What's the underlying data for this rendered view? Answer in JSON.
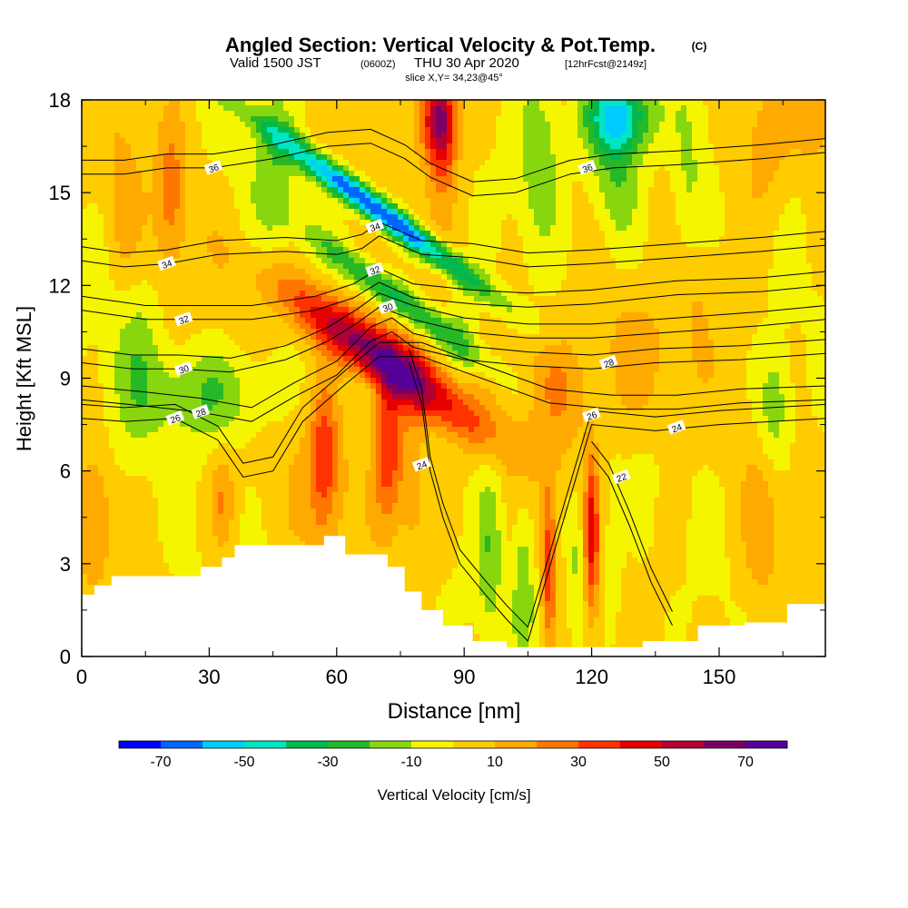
{
  "chart_data": {
    "type": "heatmap",
    "title": "Angled Section: Vertical Velocity & Pot.Temp.",
    "title_mark": "(C)",
    "subtitle": {
      "prefix": "Valid 1500 JST",
      "zulu": "(0600Z)",
      "date": "THU 30 Apr 2020",
      "fcst": "[12hrFcst@2149z]"
    },
    "slice_label": "slice X,Y= 34,23@45°",
    "xlabel": "Distance [nm]",
    "ylabel": "Height [Kft MSL]",
    "xlim": [
      0,
      175
    ],
    "ylim": [
      0,
      18
    ],
    "x_ticks": [
      "0",
      "30",
      "60",
      "90",
      "120",
      "150"
    ],
    "x_tick_values": [
      0,
      30,
      60,
      90,
      120,
      150
    ],
    "y_ticks": [
      "0",
      "3",
      "6",
      "9",
      "12",
      "15",
      "18"
    ],
    "y_tick_values": [
      0,
      3,
      6,
      9,
      12,
      15,
      18
    ],
    "colorbar": {
      "label": "Vertical Velocity [cm/s]",
      "tick_labels": [
        "-70",
        "-50",
        "-30",
        "-10",
        "10",
        "30",
        "50",
        "70"
      ],
      "tick_values": [
        -70,
        -50,
        -30,
        -10,
        10,
        30,
        50,
        70
      ],
      "bounds": [
        -80,
        80
      ],
      "step": 10,
      "colors": [
        "#0000ff",
        "#0066ff",
        "#00ccff",
        "#00e5c2",
        "#00b84d",
        "#26b826",
        "#88d60e",
        "#f5f500",
        "#ffcc00",
        "#ffaa00",
        "#ff7700",
        "#ff3300",
        "#e60000",
        "#b30033",
        "#7a0066",
        "#550099"
      ]
    },
    "terrain": [
      [
        0,
        2.0
      ],
      [
        3,
        2.3
      ],
      [
        7,
        2.6
      ],
      [
        28,
        2.9
      ],
      [
        33,
        3.2
      ],
      [
        36,
        3.6
      ],
      [
        52,
        3.6
      ],
      [
        57,
        3.9
      ],
      [
        62,
        3.3
      ],
      [
        70,
        3.3
      ],
      [
        72,
        2.9
      ],
      [
        76,
        2.1
      ],
      [
        80,
        1.5
      ],
      [
        85,
        1.0
      ],
      [
        92,
        0.5
      ],
      [
        100,
        0.3
      ],
      [
        118,
        0.3
      ],
      [
        132,
        0.5
      ],
      [
        145,
        1.0
      ],
      [
        156,
        1.1
      ],
      [
        166,
        1.7
      ],
      [
        175,
        1.7
      ]
    ],
    "velocity_features": [
      {
        "x": 71,
        "y": 9.6,
        "sx": 7,
        "sy": 3.2,
        "a": 45,
        "w": 70
      },
      {
        "x": 72,
        "y": 6.8,
        "sx": 3.5,
        "sy": 2.5,
        "a": 0,
        "w": 40
      },
      {
        "x": 78,
        "y": 5.5,
        "sx": 3.5,
        "sy": 3.5,
        "a": 0,
        "w": 15
      },
      {
        "x": 69,
        "y": 14.5,
        "sx": 3.5,
        "sy": 3.5,
        "a": 45,
        "w": -75
      },
      {
        "x": 75,
        "y": 11.5,
        "sx": 4,
        "sy": 3,
        "a": 45,
        "w": -35
      },
      {
        "x": 84,
        "y": 17.5,
        "sx": 4,
        "sy": 1.4,
        "a": 0,
        "w": 50
      },
      {
        "x": 85,
        "y": 16.5,
        "sx": 3.5,
        "sy": 2,
        "a": 0,
        "w": 25
      },
      {
        "x": 126,
        "y": 17.5,
        "sx": 8,
        "sy": 1.2,
        "a": 0,
        "w": -50
      },
      {
        "x": 126,
        "y": 15.5,
        "sx": 6,
        "sy": 2.5,
        "a": 0,
        "w": -25
      },
      {
        "x": 108,
        "y": 16,
        "sx": 5,
        "sy": 3,
        "a": 0,
        "w": -18
      },
      {
        "x": 143,
        "y": 14.5,
        "sx": 4,
        "sy": 3.5,
        "a": 0,
        "w": -18
      },
      {
        "x": 21,
        "y": 15,
        "sx": 3.5,
        "sy": 2.5,
        "a": 0,
        "w": 22
      },
      {
        "x": 10,
        "y": 14,
        "sx": 4,
        "sy": 3,
        "a": 0,
        "w": 14
      },
      {
        "x": 30,
        "y": 8.5,
        "sx": 15,
        "sy": 1.5,
        "a": 10,
        "w": -22
      },
      {
        "x": 12,
        "y": 10,
        "sx": 6,
        "sy": 3,
        "a": 0,
        "w": -15
      },
      {
        "x": 45,
        "y": 16,
        "sx": 5,
        "sy": 2.5,
        "a": 0,
        "w": -18
      },
      {
        "x": 57,
        "y": 6.5,
        "sx": 3,
        "sy": 2.5,
        "a": 0,
        "w": 25
      },
      {
        "x": 57,
        "y": 6,
        "sx": 7,
        "sy": 2.5,
        "a": 0,
        "w": 12
      },
      {
        "x": 3,
        "y": 4.5,
        "sx": 4,
        "sy": 2,
        "a": 0,
        "w": 18
      },
      {
        "x": 33,
        "y": 5,
        "sx": 3,
        "sy": 1.5,
        "a": 0,
        "w": 18
      },
      {
        "x": 90,
        "y": 10.5,
        "sx": 4,
        "sy": 2,
        "a": 0,
        "w": -12
      },
      {
        "x": 96,
        "y": 3.5,
        "sx": 3,
        "sy": 3,
        "a": 0,
        "w": -18
      },
      {
        "x": 104,
        "y": 2.5,
        "sx": 2.5,
        "sy": 2.5,
        "a": 0,
        "w": -20
      },
      {
        "x": 110,
        "y": 3,
        "sx": 1.6,
        "sy": 2.5,
        "a": 0,
        "w": 35
      },
      {
        "x": 120,
        "y": 4,
        "sx": 1.6,
        "sy": 2.5,
        "a": 0,
        "w": 40
      },
      {
        "x": 116,
        "y": 3,
        "sx": 2,
        "sy": 2.5,
        "a": 0,
        "w": -15
      },
      {
        "x": 125,
        "y": 3,
        "sx": 2,
        "sy": 2.5,
        "a": 0,
        "w": -12
      },
      {
        "x": 112,
        "y": 8.5,
        "sx": 8,
        "sy": 2,
        "a": 0,
        "w": 18
      },
      {
        "x": 130,
        "y": 9.5,
        "sx": 8,
        "sy": 2,
        "a": 0,
        "w": 15
      },
      {
        "x": 163,
        "y": 8,
        "sx": 4,
        "sy": 2,
        "a": 0,
        "w": -22
      },
      {
        "x": 160,
        "y": 16.5,
        "sx": 6,
        "sy": 2.5,
        "a": 0,
        "w": 15
      },
      {
        "x": 172,
        "y": 17.5,
        "sx": 5,
        "sy": 1.5,
        "a": 0,
        "w": 15
      },
      {
        "x": 160,
        "y": 4,
        "sx": 5,
        "sy": 3,
        "a": 0,
        "w": 12
      },
      {
        "x": 144,
        "y": 12,
        "sx": 4,
        "sy": 3,
        "a": 0,
        "w": 13
      },
      {
        "x": 120,
        "y": 12.5,
        "sx": 10,
        "sy": 2.5,
        "a": 0,
        "w": 6
      }
    ],
    "isentropes": [
      {
        "label": "22",
        "points": [
          [
            120,
            6.5
          ],
          [
            124,
            5.8
          ],
          [
            129,
            4.2
          ],
          [
            134,
            2.4
          ],
          [
            139,
            1.0
          ]
        ],
        "label_at": [
          127,
          5.8
        ]
      },
      {
        "label": "24",
        "points": [
          [
            77,
            9.5
          ],
          [
            80,
            8.2
          ],
          [
            82,
            6.0
          ],
          [
            85,
            4.5
          ],
          [
            89,
            3.0
          ],
          [
            95,
            2.0
          ],
          [
            100,
            1.2
          ],
          [
            105,
            0.5
          ],
          [
            120,
            7.5
          ],
          [
            135,
            7.3
          ],
          [
            150,
            7.5
          ],
          [
            175,
            7.7
          ]
        ],
        "label_at": [
          80,
          6.2
        ],
        "label2_at": [
          140,
          7.4
        ]
      },
      {
        "label": "26",
        "points": [
          [
            0,
            7.7
          ],
          [
            10,
            7.6
          ],
          [
            22,
            7.7
          ],
          [
            32,
            7.0
          ],
          [
            38,
            5.8
          ],
          [
            45,
            6.0
          ],
          [
            52,
            7.6
          ],
          [
            62,
            8.8
          ],
          [
            70,
            9.7
          ],
          [
            80,
            9.7
          ],
          [
            90,
            9.2
          ],
          [
            100,
            8.7
          ],
          [
            110,
            8.2
          ],
          [
            125,
            8.0
          ],
          [
            140,
            8.0
          ],
          [
            155,
            8.2
          ],
          [
            175,
            8.3
          ]
        ],
        "label_at": [
          22,
          7.7
        ],
        "label2_at": [
          120,
          7.8
        ]
      },
      {
        "label": "28",
        "points": [
          [
            0,
            8.3
          ],
          [
            15,
            8.1
          ],
          [
            28,
            7.9
          ],
          [
            40,
            7.6
          ],
          [
            50,
            8.4
          ],
          [
            60,
            9.1
          ],
          [
            68,
            10.2
          ],
          [
            73,
            10.5
          ],
          [
            78,
            10.0
          ],
          [
            90,
            9.6
          ],
          [
            105,
            9.4
          ],
          [
            120,
            9.3
          ],
          [
            135,
            9.5
          ],
          [
            155,
            9.6
          ],
          [
            175,
            9.8
          ]
        ],
        "label_at": [
          28,
          7.9
        ],
        "label2_at": [
          124,
          9.5
        ]
      },
      {
        "label": "30",
        "points": [
          [
            0,
            9.5
          ],
          [
            12,
            9.3
          ],
          [
            23,
            9.3
          ],
          [
            35,
            9.2
          ],
          [
            48,
            9.6
          ],
          [
            58,
            10.2
          ],
          [
            65,
            10.8
          ],
          [
            70,
            11.3
          ],
          [
            78,
            10.9
          ],
          [
            90,
            10.5
          ],
          [
            105,
            10.3
          ],
          [
            120,
            10.3
          ],
          [
            140,
            10.5
          ],
          [
            160,
            10.7
          ],
          [
            175,
            10.9
          ]
        ],
        "label_at": [
          24,
          9.3
        ],
        "label2_at": [
          72,
          11.3
        ]
      },
      {
        "label": "32",
        "points": [
          [
            0,
            11.2
          ],
          [
            15,
            10.9
          ],
          [
            26,
            10.9
          ],
          [
            40,
            10.9
          ],
          [
            55,
            11.2
          ],
          [
            64,
            11.6
          ],
          [
            70,
            12.1
          ],
          [
            78,
            11.6
          ],
          [
            92,
            11.4
          ],
          [
            105,
            11.3
          ],
          [
            120,
            11.4
          ],
          [
            140,
            11.7
          ],
          [
            160,
            11.8
          ],
          [
            175,
            12.0
          ]
        ],
        "label_at": [
          24,
          10.9
        ],
        "label2_at": [
          69,
          12.5
        ]
      },
      {
        "label": "34",
        "points": [
          [
            0,
            12.8
          ],
          [
            10,
            12.6
          ],
          [
            20,
            12.7
          ],
          [
            32,
            13.0
          ],
          [
            48,
            13.1
          ],
          [
            60,
            13.0
          ],
          [
            66,
            13.2
          ],
          [
            70,
            13.6
          ],
          [
            80,
            13.0
          ],
          [
            92,
            12.9
          ],
          [
            105,
            12.6
          ],
          [
            120,
            12.7
          ],
          [
            140,
            12.9
          ],
          [
            160,
            13.1
          ],
          [
            175,
            13.3
          ]
        ],
        "label_at": [
          20,
          12.7
        ],
        "label2_at": [
          69,
          13.9
        ]
      },
      {
        "label": "36",
        "points": [
          [
            0,
            15.6
          ],
          [
            10,
            15.6
          ],
          [
            20,
            15.8
          ],
          [
            31,
            15.8
          ],
          [
            45,
            16.1
          ],
          [
            58,
            16.5
          ],
          [
            68,
            16.6
          ],
          [
            76,
            16.1
          ],
          [
            82,
            15.5
          ],
          [
            92,
            14.9
          ],
          [
            102,
            15.0
          ],
          [
            115,
            15.6
          ],
          [
            125,
            15.8
          ],
          [
            140,
            15.9
          ],
          [
            160,
            16.1
          ],
          [
            175,
            16.3
          ]
        ],
        "label_at": [
          31,
          15.8
        ],
        "label2_at": [
          119,
          15.8
        ]
      }
    ]
  }
}
